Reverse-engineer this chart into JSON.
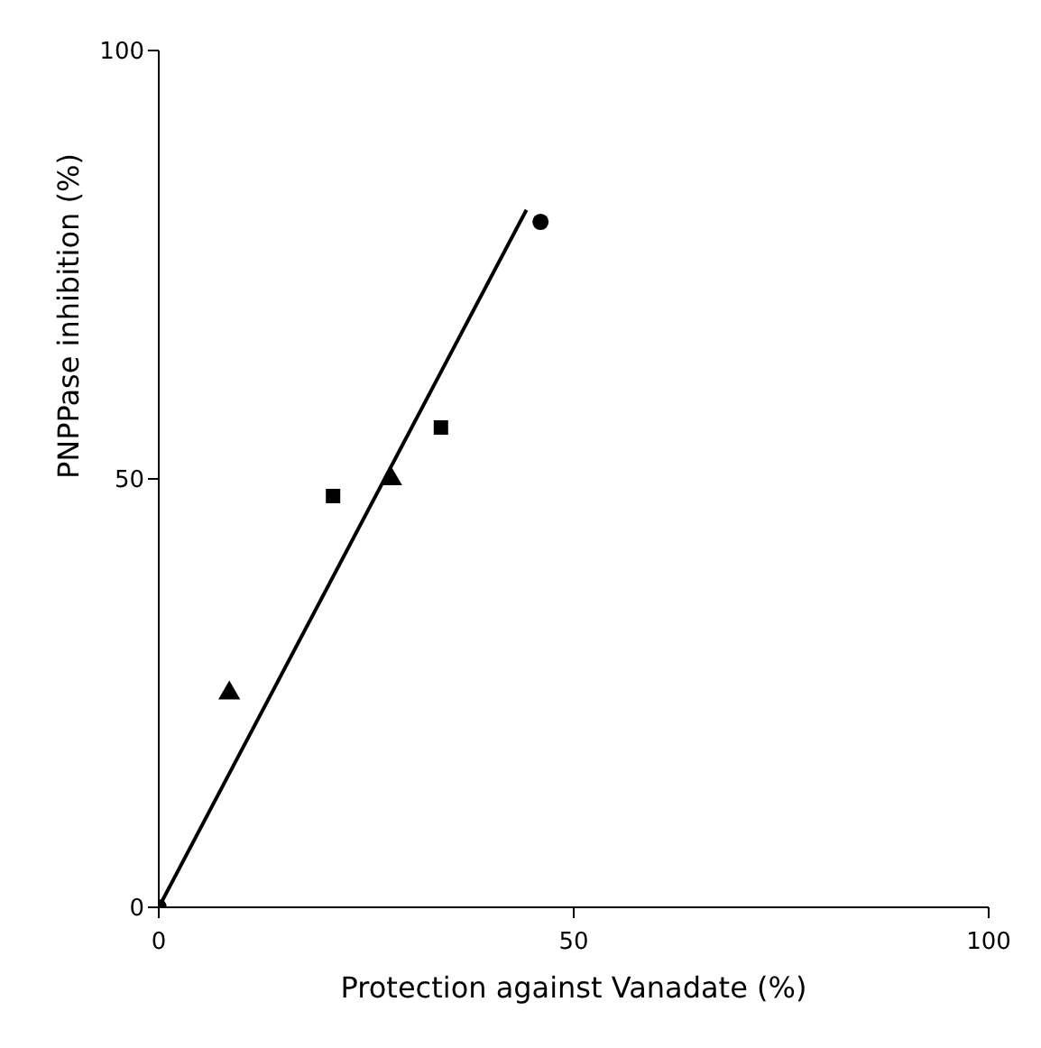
{
  "chart_data": {
    "type": "scatter",
    "xlabel": "Protection against Vanadate (%)",
    "ylabel": "PNPPase inhibition (%)",
    "xlim": [
      0,
      100
    ],
    "xticks": [
      0,
      50,
      100
    ],
    "ylim": [
      0,
      100
    ],
    "yticks": [
      0,
      50,
      100
    ],
    "grid": false,
    "series": [
      {
        "type": "scatter",
        "marker": "circle",
        "color": "#000000",
        "x": [
          0
        ],
        "values": [
          0
        ]
      },
      {
        "type": "scatter",
        "marker": "triangle",
        "color": "#000000",
        "x": [
          8.5
        ],
        "values": [
          25
        ]
      },
      {
        "type": "scatter",
        "marker": "square",
        "color": "#000000",
        "x": [
          21
        ],
        "values": [
          48
        ]
      },
      {
        "type": "scatter",
        "marker": "triangle",
        "color": "#000000",
        "x": [
          28
        ],
        "values": [
          50
        ]
      },
      {
        "type": "scatter",
        "marker": "square",
        "color": "#000000",
        "x": [
          34
        ],
        "values": [
          56
        ]
      },
      {
        "type": "scatter",
        "marker": "circle",
        "color": "#000000",
        "x": [
          46
        ],
        "values": [
          80
        ]
      },
      {
        "type": "line",
        "marker": "none",
        "line_style": "solid",
        "color": "#000000",
        "x": [
          0,
          44.3
        ],
        "values": [
          0,
          81.4
        ]
      }
    ]
  }
}
